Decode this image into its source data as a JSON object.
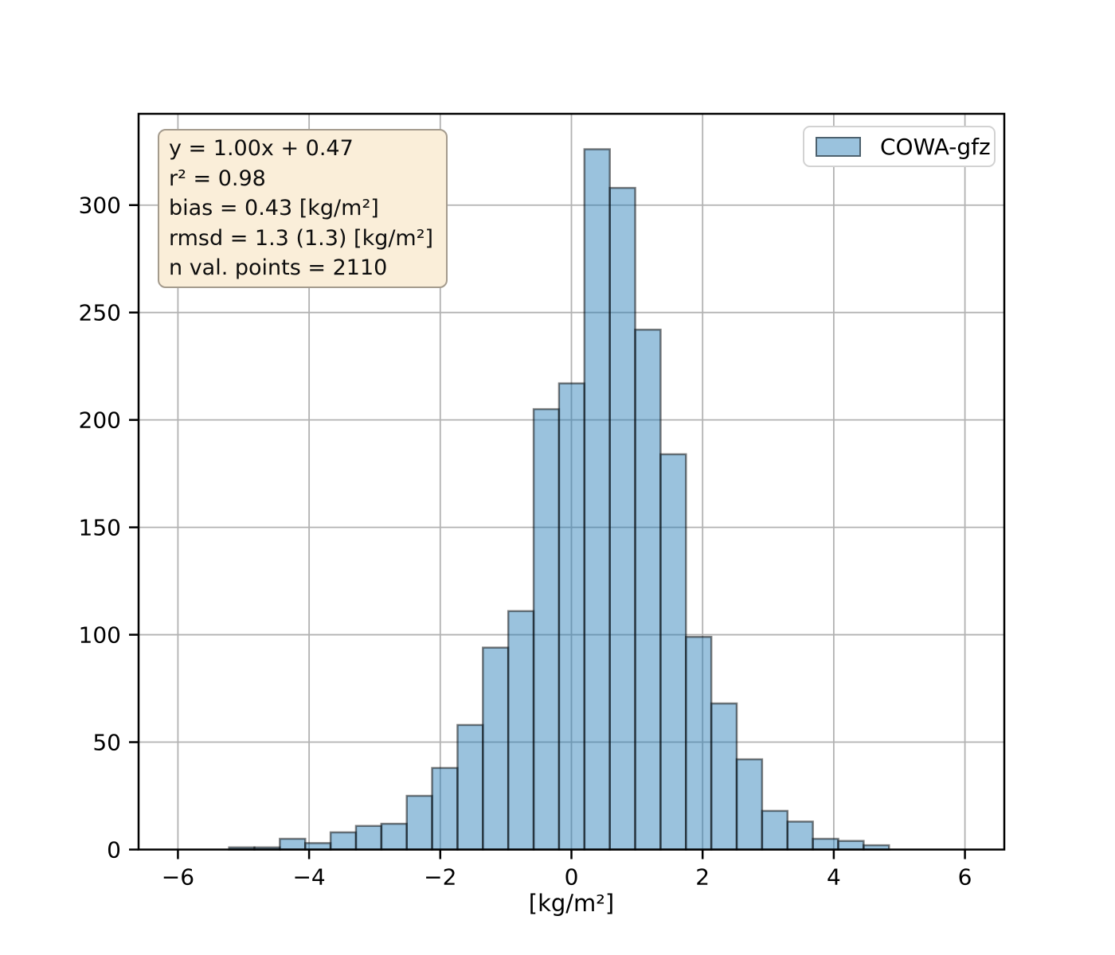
{
  "chart_data": {
    "type": "bar",
    "subtype": "histogram",
    "title": "",
    "xlabel": "[kg/m²]",
    "ylabel": "",
    "xlim": [
      -6.6,
      6.6
    ],
    "ylim": [
      0,
      342.5
    ],
    "grid": true,
    "xticks": {
      "values": [
        -6,
        -4,
        -2,
        0,
        2,
        4,
        6
      ],
      "labels": [
        "−6",
        "−4",
        "−2",
        "0",
        "2",
        "4",
        "6"
      ]
    },
    "yticks": {
      "values": [
        0,
        50,
        100,
        150,
        200,
        250,
        300
      ],
      "labels": [
        "0",
        "50",
        "100",
        "150",
        "200",
        "250",
        "300"
      ]
    },
    "series": [
      {
        "name": "COWA-gfz",
        "bin_start": -5.22,
        "bin_width": 0.387,
        "counts": [
          1,
          1,
          5,
          3,
          8,
          11,
          12,
          25,
          38,
          58,
          94,
          111,
          205,
          217,
          326,
          308,
          242,
          184,
          99,
          68,
          42,
          18,
          13,
          5,
          4,
          2
        ]
      }
    ],
    "legend": {
      "position": "upper right",
      "entries": [
        {
          "label": "COWA-gfz"
        }
      ]
    },
    "annotation_box": {
      "lines": [
        "y = 1.00x + 0.47",
        "r² = 0.98",
        "bias = 0.43 [kg/m²]",
        "rmsd = 1.3 (1.3) [kg/m²]",
        "n val. points = 2110"
      ]
    },
    "colors": {
      "bar_fill": "#1f77b4",
      "bar_fill_opacity": 0.45,
      "bar_edge": "#000000",
      "bar_edge_opacity": 0.5,
      "grid": "#b2b2b2",
      "spine": "#000000",
      "tick": "#000000",
      "annotation_bg": "#faeed9",
      "annotation_border": "#a49b8d",
      "legend_border": "#d2d2d2"
    }
  }
}
